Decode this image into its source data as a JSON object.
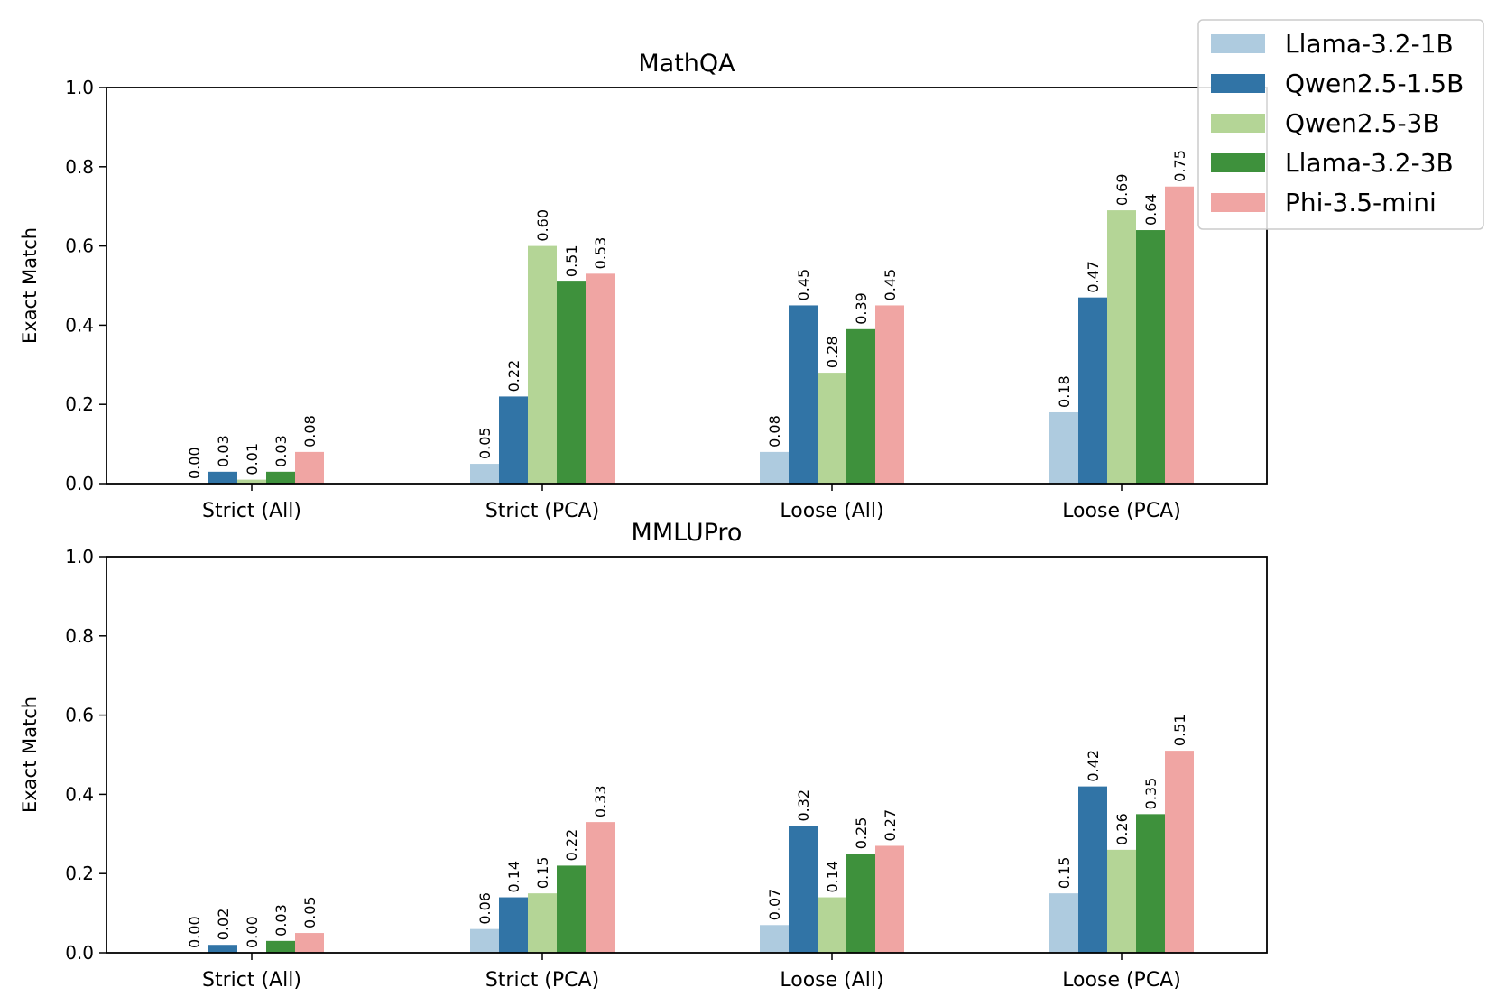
{
  "chart_data": [
    {
      "type": "bar",
      "title": "MathQA",
      "xlabel": "",
      "ylabel": "Exact Match",
      "ylim": [
        0,
        1.0
      ],
      "yticks": [
        "0.0",
        "0.2",
        "0.4",
        "0.6",
        "0.8",
        "1.0"
      ],
      "categories": [
        "Strict (All)",
        "Strict (PCA)",
        "Loose (All)",
        "Loose (PCA)"
      ],
      "series": [
        {
          "name": "Llama-3.2-1B",
          "color": "#aecbdf",
          "values": [
            0.0,
            0.05,
            0.08,
            0.18
          ],
          "labels": [
            "0.00",
            "0.05",
            "0.08",
            "0.18"
          ]
        },
        {
          "name": "Qwen2.5-1.5B",
          "color": "#3174a6",
          "values": [
            0.03,
            0.22,
            0.45,
            0.47
          ],
          "labels": [
            "0.03",
            "0.22",
            "0.45",
            "0.47"
          ]
        },
        {
          "name": "Qwen2.5-3B",
          "color": "#b4d596",
          "values": [
            0.01,
            0.6,
            0.28,
            0.69
          ],
          "labels": [
            "0.01",
            "0.60",
            "0.28",
            "0.69"
          ]
        },
        {
          "name": "Llama-3.2-3B",
          "color": "#3e913c",
          "values": [
            0.03,
            0.51,
            0.39,
            0.64
          ],
          "labels": [
            "0.03",
            "0.51",
            "0.39",
            "0.64"
          ]
        },
        {
          "name": "Phi-3.5-mini",
          "color": "#f0a5a3",
          "values": [
            0.08,
            0.53,
            0.45,
            0.75
          ],
          "labels": [
            "0.08",
            "0.53",
            "0.45",
            "0.75"
          ]
        }
      ]
    },
    {
      "type": "bar",
      "title": "MMLUPro",
      "xlabel": "",
      "ylabel": "Exact Match",
      "ylim": [
        0,
        1.0
      ],
      "yticks": [
        "0.0",
        "0.2",
        "0.4",
        "0.6",
        "0.8",
        "1.0"
      ],
      "categories": [
        "Strict (All)",
        "Strict (PCA)",
        "Loose (All)",
        "Loose (PCA)"
      ],
      "series": [
        {
          "name": "Llama-3.2-1B",
          "color": "#aecbdf",
          "values": [
            0.0,
            0.06,
            0.07,
            0.15
          ],
          "labels": [
            "0.00",
            "0.06",
            "0.07",
            "0.15"
          ]
        },
        {
          "name": "Qwen2.5-1.5B",
          "color": "#3174a6",
          "values": [
            0.02,
            0.14,
            0.32,
            0.42
          ],
          "labels": [
            "0.02",
            "0.14",
            "0.32",
            "0.42"
          ]
        },
        {
          "name": "Qwen2.5-3B",
          "color": "#b4d596",
          "values": [
            0.0,
            0.15,
            0.14,
            0.26
          ],
          "labels": [
            "0.00",
            "0.15",
            "0.14",
            "0.26"
          ]
        },
        {
          "name": "Llama-3.2-3B",
          "color": "#3e913c",
          "values": [
            0.03,
            0.22,
            0.25,
            0.35
          ],
          "labels": [
            "0.03",
            "0.22",
            "0.25",
            "0.35"
          ]
        },
        {
          "name": "Phi-3.5-mini",
          "color": "#f0a5a3",
          "values": [
            0.05,
            0.33,
            0.27,
            0.51
          ],
          "labels": [
            "0.05",
            "0.33",
            "0.27",
            "0.51"
          ]
        }
      ]
    }
  ],
  "legend": {
    "placement": "top-right",
    "entries": [
      {
        "name": "Llama-3.2-1B",
        "color": "#aecbdf"
      },
      {
        "name": "Qwen2.5-1.5B",
        "color": "#3174a6"
      },
      {
        "name": "Qwen2.5-3B",
        "color": "#b4d596"
      },
      {
        "name": "Llama-3.2-3B",
        "color": "#3e913c"
      },
      {
        "name": "Phi-3.5-mini",
        "color": "#f0a5a3"
      }
    ]
  }
}
